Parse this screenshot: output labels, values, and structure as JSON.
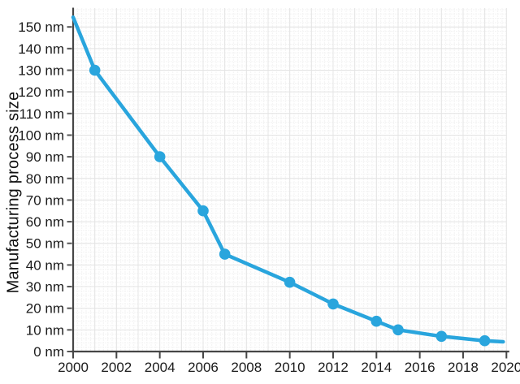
{
  "chart_data": {
    "type": "line",
    "title": "",
    "xlabel": "",
    "ylabel": "Manufacturing process size",
    "unit": "nm",
    "x": [
      2001,
      2004,
      2006,
      2007,
      2010,
      2012,
      2014,
      2015,
      2017,
      2019
    ],
    "values": [
      130,
      90,
      65,
      45,
      32,
      22,
      14,
      10,
      7,
      5
    ],
    "clip_start": {
      "x": 2000,
      "y": 154.5
    },
    "clip_end": {
      "x": 2019.85,
      "y": 4.5
    },
    "xlim": [
      2000,
      2020
    ],
    "ylim": [
      0,
      158.7
    ],
    "xticks": [
      2000,
      2002,
      2004,
      2006,
      2008,
      2010,
      2012,
      2014,
      2016,
      2018,
      2020
    ],
    "xtick_labels": [
      "2000",
      "2002",
      "2004",
      "2006",
      "2008",
      "2010",
      "2012",
      "2014",
      "2016",
      "2018",
      "2020"
    ],
    "yticks": [
      0,
      10,
      20,
      30,
      40,
      50,
      60,
      70,
      80,
      90,
      100,
      110,
      120,
      130,
      140,
      150
    ],
    "ytick_labels": [
      "0 nm",
      "10 nm",
      "20 nm",
      "30 nm",
      "40 nm",
      "50 nm",
      "60 nm",
      "70 nm",
      "80 nm",
      "90 nm",
      "100 nm",
      "110 nm",
      "120 nm",
      "130 nm",
      "140 nm",
      "150 nm"
    ],
    "grid": {
      "visible": true,
      "minor_x_step": 0.2,
      "minor_y_step": 2,
      "major_x_step": 1,
      "major_y_step": 10
    },
    "legend": null,
    "marker": {
      "shape": "circle",
      "radius": 6.8
    },
    "line_width": 4.5,
    "colors": {
      "line": "#29a5dd",
      "axis": "#464646",
      "tick": "#565656",
      "label": "#1b1b1b",
      "grid_major": "#e4e4e4",
      "grid_minor": "#f3f3f3",
      "background": "#ffffff"
    }
  }
}
